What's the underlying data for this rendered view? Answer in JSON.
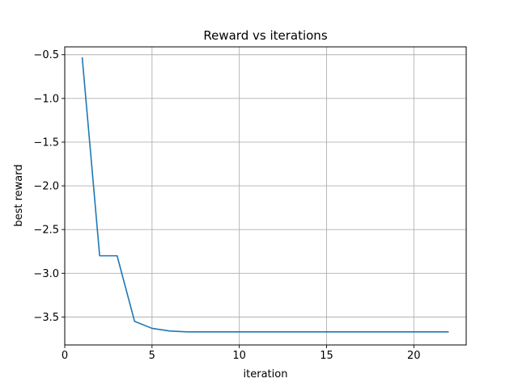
{
  "chart_data": {
    "type": "line",
    "title": "Reward vs iterations",
    "xlabel": "iteration",
    "ylabel": "best reward",
    "xlim": [
      0,
      23
    ],
    "ylim": [
      -3.82,
      -0.41
    ],
    "xticks": [
      0,
      5,
      10,
      15,
      20
    ],
    "xtick_labels": [
      "0",
      "5",
      "10",
      "15",
      "20"
    ],
    "yticks": [
      -0.5,
      -1.0,
      -1.5,
      -2.0,
      -2.5,
      -3.0,
      -3.5
    ],
    "ytick_labels": [
      "−0.5",
      "−1.0",
      "−1.5",
      "−2.0",
      "−2.5",
      "−3.0",
      "−3.5"
    ],
    "grid": true,
    "series": [
      {
        "color": "#1f77b4",
        "x": [
          1,
          2,
          3,
          4,
          5,
          6,
          7,
          8,
          9,
          10,
          11,
          12,
          13,
          14,
          15,
          16,
          17,
          18,
          19,
          20,
          21,
          22
        ],
        "values": [
          -0.53,
          -2.8,
          -2.8,
          -3.55,
          -3.63,
          -3.66,
          -3.67,
          -3.67,
          -3.67,
          -3.67,
          -3.67,
          -3.67,
          -3.67,
          -3.67,
          -3.67,
          -3.67,
          -3.67,
          -3.67,
          -3.67,
          -3.67,
          -3.67,
          -3.67
        ]
      }
    ]
  }
}
